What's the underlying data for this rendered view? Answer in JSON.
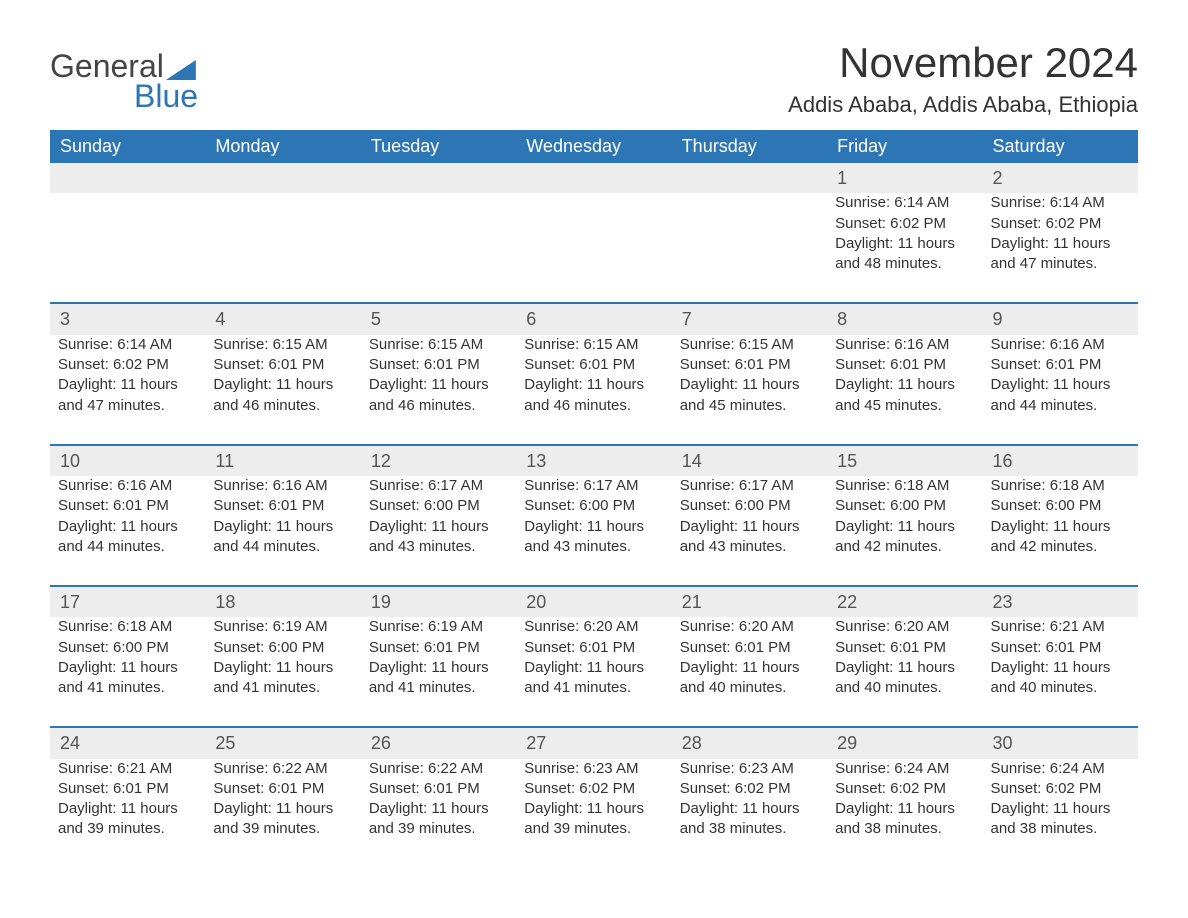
{
  "logo": {
    "text1": "General",
    "text2": "Blue"
  },
  "title": "November 2024",
  "location": "Addis Ababa, Addis Ababa, Ethiopia",
  "colors": {
    "header_bg": "#2d76b6",
    "header_fg": "#ffffff",
    "daynum_bg": "#ededed",
    "daynum_border": "#2d76b6",
    "page_bg": "#ffffff",
    "text": "#333333",
    "logo_gray": "#444444",
    "logo_blue": "#2d76b6"
  },
  "typography": {
    "title_fontsize": 42,
    "location_fontsize": 22,
    "header_fontsize": 18,
    "daynum_fontsize": 18,
    "body_fontsize": 15,
    "font_family": "Segoe UI"
  },
  "weekdays": [
    "Sunday",
    "Monday",
    "Tuesday",
    "Wednesday",
    "Thursday",
    "Friday",
    "Saturday"
  ],
  "labels": {
    "sunrise_prefix": "Sunrise: ",
    "sunset_prefix": "Sunset: ",
    "daylight_prefix": "Daylight: ",
    "daylight_hours_word": " hours",
    "daylight_and": "and ",
    "daylight_min_suffix": " minutes."
  },
  "weeks": [
    [
      null,
      null,
      null,
      null,
      null,
      {
        "day": 1,
        "sunrise": "6:14 AM",
        "sunset": "6:02 PM",
        "dl_h": 11,
        "dl_m": 48
      },
      {
        "day": 2,
        "sunrise": "6:14 AM",
        "sunset": "6:02 PM",
        "dl_h": 11,
        "dl_m": 47
      }
    ],
    [
      {
        "day": 3,
        "sunrise": "6:14 AM",
        "sunset": "6:02 PM",
        "dl_h": 11,
        "dl_m": 47
      },
      {
        "day": 4,
        "sunrise": "6:15 AM",
        "sunset": "6:01 PM",
        "dl_h": 11,
        "dl_m": 46
      },
      {
        "day": 5,
        "sunrise": "6:15 AM",
        "sunset": "6:01 PM",
        "dl_h": 11,
        "dl_m": 46
      },
      {
        "day": 6,
        "sunrise": "6:15 AM",
        "sunset": "6:01 PM",
        "dl_h": 11,
        "dl_m": 46
      },
      {
        "day": 7,
        "sunrise": "6:15 AM",
        "sunset": "6:01 PM",
        "dl_h": 11,
        "dl_m": 45
      },
      {
        "day": 8,
        "sunrise": "6:16 AM",
        "sunset": "6:01 PM",
        "dl_h": 11,
        "dl_m": 45
      },
      {
        "day": 9,
        "sunrise": "6:16 AM",
        "sunset": "6:01 PM",
        "dl_h": 11,
        "dl_m": 44
      }
    ],
    [
      {
        "day": 10,
        "sunrise": "6:16 AM",
        "sunset": "6:01 PM",
        "dl_h": 11,
        "dl_m": 44
      },
      {
        "day": 11,
        "sunrise": "6:16 AM",
        "sunset": "6:01 PM",
        "dl_h": 11,
        "dl_m": 44
      },
      {
        "day": 12,
        "sunrise": "6:17 AM",
        "sunset": "6:00 PM",
        "dl_h": 11,
        "dl_m": 43
      },
      {
        "day": 13,
        "sunrise": "6:17 AM",
        "sunset": "6:00 PM",
        "dl_h": 11,
        "dl_m": 43
      },
      {
        "day": 14,
        "sunrise": "6:17 AM",
        "sunset": "6:00 PM",
        "dl_h": 11,
        "dl_m": 43
      },
      {
        "day": 15,
        "sunrise": "6:18 AM",
        "sunset": "6:00 PM",
        "dl_h": 11,
        "dl_m": 42
      },
      {
        "day": 16,
        "sunrise": "6:18 AM",
        "sunset": "6:00 PM",
        "dl_h": 11,
        "dl_m": 42
      }
    ],
    [
      {
        "day": 17,
        "sunrise": "6:18 AM",
        "sunset": "6:00 PM",
        "dl_h": 11,
        "dl_m": 41
      },
      {
        "day": 18,
        "sunrise": "6:19 AM",
        "sunset": "6:00 PM",
        "dl_h": 11,
        "dl_m": 41
      },
      {
        "day": 19,
        "sunrise": "6:19 AM",
        "sunset": "6:01 PM",
        "dl_h": 11,
        "dl_m": 41
      },
      {
        "day": 20,
        "sunrise": "6:20 AM",
        "sunset": "6:01 PM",
        "dl_h": 11,
        "dl_m": 41
      },
      {
        "day": 21,
        "sunrise": "6:20 AM",
        "sunset": "6:01 PM",
        "dl_h": 11,
        "dl_m": 40
      },
      {
        "day": 22,
        "sunrise": "6:20 AM",
        "sunset": "6:01 PM",
        "dl_h": 11,
        "dl_m": 40
      },
      {
        "day": 23,
        "sunrise": "6:21 AM",
        "sunset": "6:01 PM",
        "dl_h": 11,
        "dl_m": 40
      }
    ],
    [
      {
        "day": 24,
        "sunrise": "6:21 AM",
        "sunset": "6:01 PM",
        "dl_h": 11,
        "dl_m": 39
      },
      {
        "day": 25,
        "sunrise": "6:22 AM",
        "sunset": "6:01 PM",
        "dl_h": 11,
        "dl_m": 39
      },
      {
        "day": 26,
        "sunrise": "6:22 AM",
        "sunset": "6:01 PM",
        "dl_h": 11,
        "dl_m": 39
      },
      {
        "day": 27,
        "sunrise": "6:23 AM",
        "sunset": "6:02 PM",
        "dl_h": 11,
        "dl_m": 39
      },
      {
        "day": 28,
        "sunrise": "6:23 AM",
        "sunset": "6:02 PM",
        "dl_h": 11,
        "dl_m": 38
      },
      {
        "day": 29,
        "sunrise": "6:24 AM",
        "sunset": "6:02 PM",
        "dl_h": 11,
        "dl_m": 38
      },
      {
        "day": 30,
        "sunrise": "6:24 AM",
        "sunset": "6:02 PM",
        "dl_h": 11,
        "dl_m": 38
      }
    ]
  ]
}
